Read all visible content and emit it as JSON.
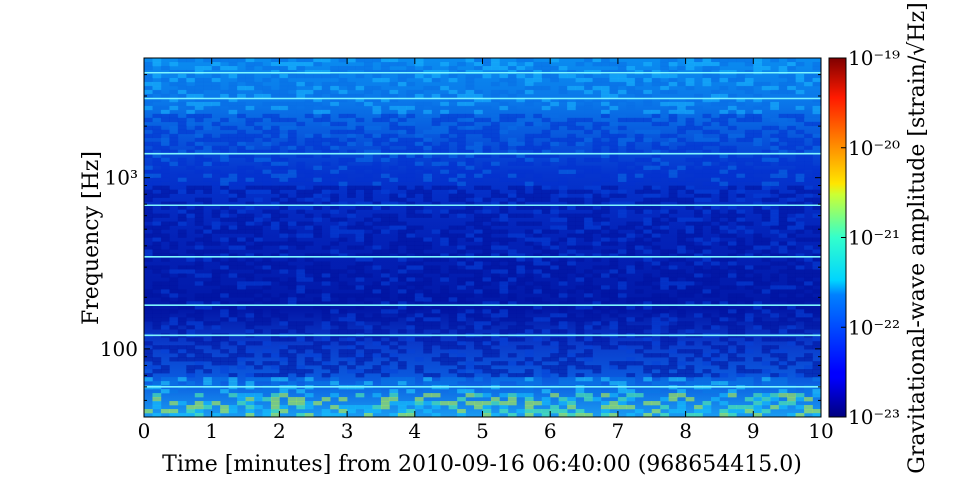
{
  "chart_data": {
    "type": "heatmap",
    "xlabel": "Time [minutes] from 2010-09-16 06:40:00 (968654415.0)",
    "ylabel": "Frequency [Hz]",
    "colorbar_label": "Gravitational-wave amplitude [strain/√Hz]",
    "xlim": [
      0,
      10
    ],
    "ylim": [
      40,
      5000
    ],
    "yscale": "log",
    "x_ticks": [
      "0",
      "1",
      "2",
      "3",
      "4",
      "5",
      "6",
      "7",
      "8",
      "9",
      "10"
    ],
    "y_ticks": [
      {
        "value": 100,
        "label": "100"
      },
      {
        "value": 1000,
        "label": "10³"
      }
    ],
    "colorbar": {
      "scale": "log",
      "range": [
        1e-23,
        1e-19
      ],
      "ticks": [
        {
          "value": 1e-19,
          "label": "10⁻¹⁹"
        },
        {
          "value": 1e-20,
          "label": "10⁻²⁰"
        },
        {
          "value": 1e-21,
          "label": "10⁻²¹"
        },
        {
          "value": 1e-22,
          "label": "10⁻²²"
        },
        {
          "value": 1e-23,
          "label": "10⁻²³"
        }
      ],
      "colormap": "jet"
    },
    "lines_hz": [
      60,
      120,
      180,
      345,
      690,
      1380,
      2900,
      4100
    ],
    "grid": false
  }
}
